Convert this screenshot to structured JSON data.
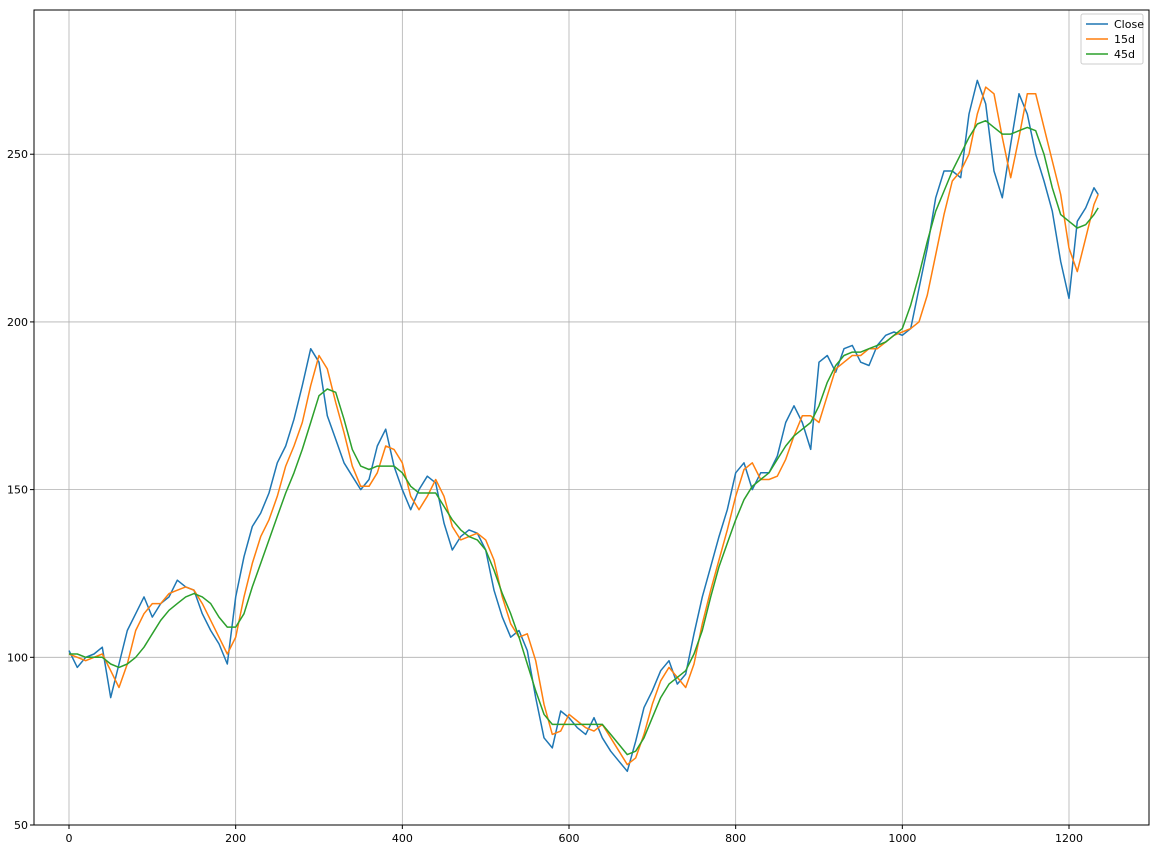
{
  "chart_data": {
    "type": "line",
    "title": "",
    "xlabel": "",
    "ylabel": "",
    "xlim": [
      -42,
      1296
    ],
    "ylim": [
      50,
      293
    ],
    "grid": true,
    "legend_position": "top-right",
    "x_ticks": [
      0,
      200,
      400,
      600,
      800,
      1000,
      1200
    ],
    "y_ticks": [
      50,
      100,
      150,
      200,
      250
    ],
    "series": [
      {
        "name": "Close",
        "color": "#1f77b4",
        "x": [
          0,
          10,
          20,
          30,
          40,
          50,
          60,
          70,
          80,
          90,
          100,
          110,
          120,
          130,
          140,
          150,
          160,
          170,
          180,
          190,
          200,
          210,
          220,
          230,
          240,
          250,
          260,
          270,
          280,
          290,
          300,
          310,
          320,
          330,
          340,
          350,
          360,
          370,
          380,
          390,
          400,
          410,
          420,
          430,
          440,
          450,
          460,
          470,
          480,
          490,
          500,
          510,
          520,
          530,
          540,
          550,
          560,
          570,
          580,
          590,
          600,
          610,
          620,
          630,
          640,
          650,
          660,
          670,
          680,
          690,
          700,
          710,
          720,
          730,
          740,
          750,
          760,
          770,
          780,
          790,
          800,
          810,
          820,
          830,
          840,
          850,
          860,
          870,
          880,
          890,
          900,
          910,
          920,
          930,
          940,
          950,
          960,
          970,
          980,
          990,
          1000,
          1010,
          1020,
          1030,
          1040,
          1050,
          1060,
          1070,
          1080,
          1090,
          1100,
          1110,
          1120,
          1130,
          1140,
          1150,
          1160,
          1170,
          1180,
          1190,
          1200,
          1210,
          1220,
          1230,
          1235
        ],
        "y": [
          102,
          97,
          100,
          101,
          103,
          88,
          98,
          108,
          113,
          118,
          112,
          116,
          118,
          123,
          121,
          120,
          113,
          108,
          104,
          98,
          118,
          130,
          139,
          143,
          149,
          158,
          163,
          171,
          181,
          192,
          188,
          172,
          165,
          158,
          154,
          150,
          153,
          163,
          168,
          157,
          150,
          144,
          150,
          154,
          152,
          140,
          132,
          136,
          138,
          137,
          132,
          120,
          112,
          106,
          108,
          102,
          88,
          76,
          73,
          84,
          82,
          79,
          77,
          82,
          76,
          72,
          69,
          66,
          75,
          85,
          90,
          96,
          99,
          92,
          95,
          107,
          118,
          127,
          136,
          144,
          155,
          158,
          150,
          155,
          155,
          160,
          170,
          175,
          170,
          162,
          188,
          190,
          185,
          192,
          193,
          188,
          187,
          193,
          196,
          197,
          196,
          198,
          210,
          222,
          237,
          245,
          245,
          243,
          262,
          272,
          265,
          245,
          237,
          253,
          268,
          262,
          250,
          242,
          233,
          218,
          207,
          230,
          234,
          240,
          238
        ]
      },
      {
        "name": "15d",
        "color": "#ff7f0e",
        "x": [
          0,
          10,
          20,
          30,
          40,
          50,
          60,
          70,
          80,
          90,
          100,
          110,
          120,
          130,
          140,
          150,
          160,
          170,
          180,
          190,
          200,
          210,
          220,
          230,
          240,
          250,
          260,
          270,
          280,
          290,
          300,
          310,
          320,
          330,
          340,
          350,
          360,
          370,
          380,
          390,
          400,
          410,
          420,
          430,
          440,
          450,
          460,
          470,
          480,
          490,
          500,
          510,
          520,
          530,
          540,
          550,
          560,
          570,
          580,
          590,
          600,
          610,
          620,
          630,
          640,
          650,
          660,
          670,
          680,
          690,
          700,
          710,
          720,
          730,
          740,
          750,
          760,
          770,
          780,
          790,
          800,
          810,
          820,
          830,
          840,
          850,
          860,
          870,
          880,
          890,
          900,
          910,
          920,
          930,
          940,
          950,
          960,
          970,
          980,
          990,
          1000,
          1010,
          1020,
          1030,
          1040,
          1050,
          1060,
          1070,
          1080,
          1090,
          1100,
          1110,
          1120,
          1130,
          1140,
          1150,
          1160,
          1170,
          1180,
          1190,
          1200,
          1210,
          1220,
          1230,
          1235
        ],
        "y": [
          101,
          100,
          99,
          100,
          101,
          96,
          91,
          98,
          108,
          113,
          116,
          116,
          119,
          120,
          121,
          120,
          116,
          111,
          106,
          101,
          106,
          118,
          128,
          136,
          141,
          148,
          157,
          163,
          170,
          181,
          190,
          186,
          176,
          167,
          157,
          151,
          151,
          155,
          163,
          162,
          158,
          148,
          144,
          148,
          153,
          148,
          139,
          135,
          136,
          137,
          135,
          129,
          118,
          110,
          106,
          107,
          99,
          86,
          77,
          78,
          83,
          81,
          79,
          78,
          80,
          76,
          72,
          68,
          70,
          77,
          86,
          93,
          97,
          94,
          91,
          98,
          110,
          120,
          129,
          138,
          148,
          156,
          158,
          153,
          153,
          154,
          159,
          166,
          172,
          172,
          170,
          178,
          186,
          188,
          190,
          190,
          192,
          192,
          194,
          196,
          197,
          198,
          200,
          208,
          220,
          232,
          242,
          245,
          250,
          262,
          270,
          268,
          255,
          243,
          255,
          268,
          268,
          258,
          248,
          238,
          222,
          215,
          225,
          235,
          238
        ]
      },
      {
        "name": "45d",
        "color": "#2ca02c",
        "x": [
          0,
          10,
          20,
          30,
          40,
          50,
          60,
          70,
          80,
          90,
          100,
          110,
          120,
          130,
          140,
          150,
          160,
          170,
          180,
          190,
          200,
          210,
          220,
          230,
          240,
          250,
          260,
          270,
          280,
          290,
          300,
          310,
          320,
          330,
          340,
          350,
          360,
          370,
          380,
          390,
          400,
          410,
          420,
          430,
          440,
          450,
          460,
          470,
          480,
          490,
          500,
          510,
          520,
          530,
          540,
          550,
          560,
          570,
          580,
          590,
          600,
          610,
          620,
          630,
          640,
          650,
          660,
          670,
          680,
          690,
          700,
          710,
          720,
          730,
          740,
          750,
          760,
          770,
          780,
          790,
          800,
          810,
          820,
          830,
          840,
          850,
          860,
          870,
          880,
          890,
          900,
          910,
          920,
          930,
          940,
          950,
          960,
          970,
          980,
          990,
          1000,
          1010,
          1020,
          1030,
          1040,
          1050,
          1060,
          1070,
          1080,
          1090,
          1100,
          1110,
          1120,
          1130,
          1140,
          1150,
          1160,
          1170,
          1180,
          1190,
          1200,
          1210,
          1220,
          1230,
          1235
        ],
        "y": [
          101,
          101,
          100,
          100,
          100,
          98,
          97,
          98,
          100,
          103,
          107,
          111,
          114,
          116,
          118,
          119,
          118,
          116,
          112,
          109,
          109,
          113,
          121,
          128,
          135,
          142,
          149,
          155,
          162,
          170,
          178,
          180,
          179,
          171,
          162,
          157,
          156,
          157,
          157,
          157,
          155,
          151,
          149,
          149,
          149,
          145,
          141,
          138,
          136,
          135,
          132,
          126,
          119,
          113,
          106,
          98,
          90,
          83,
          80,
          80,
          80,
          80,
          80,
          80,
          80,
          77,
          74,
          71,
          72,
          76,
          82,
          88,
          92,
          94,
          96,
          101,
          108,
          118,
          127,
          134,
          141,
          147,
          151,
          153,
          155,
          159,
          163,
          166,
          168,
          170,
          175,
          182,
          187,
          190,
          191,
          191,
          192,
          193,
          194,
          196,
          198,
          205,
          214,
          224,
          233,
          239,
          245,
          250,
          255,
          259,
          260,
          258,
          256,
          256,
          257,
          258,
          257,
          250,
          240,
          232,
          230,
          228,
          229,
          232,
          234
        ]
      }
    ]
  }
}
